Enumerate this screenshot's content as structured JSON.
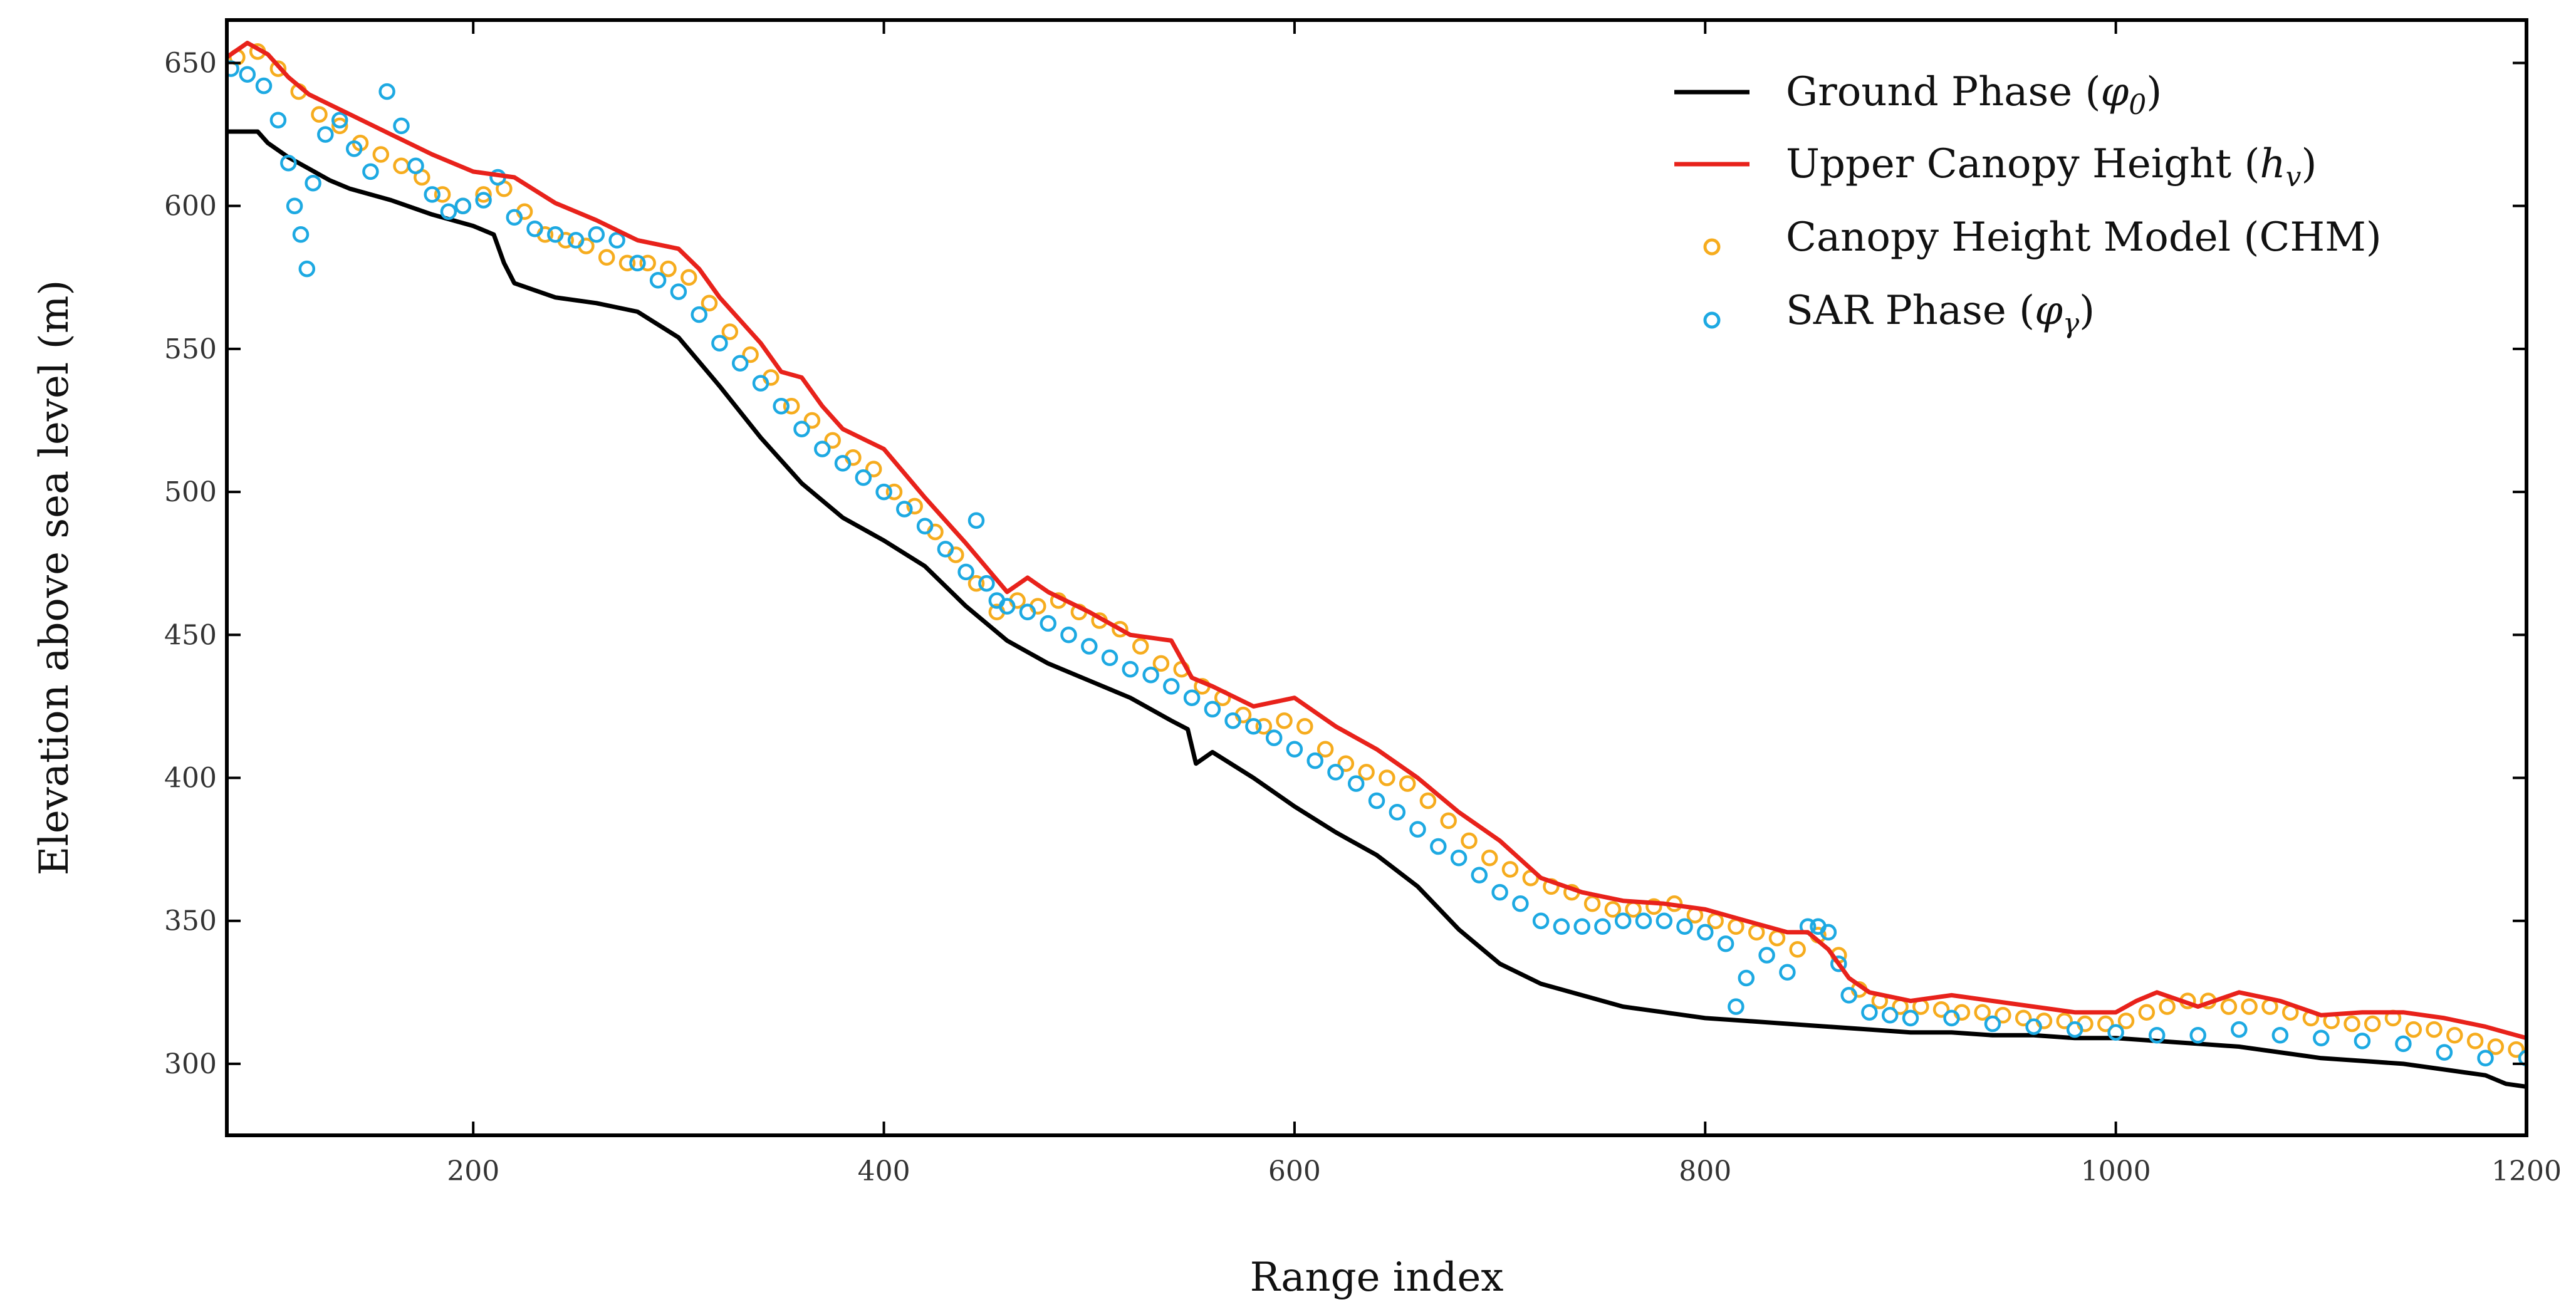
{
  "chart_data": {
    "type": "line",
    "title": "",
    "xlabel": "Range index",
    "ylabel": "Elevation above sea level (m)",
    "xlim": [
      80,
      1200
    ],
    "ylim": [
      275,
      665
    ],
    "xticks": [
      200,
      400,
      600,
      800,
      1000,
      1200
    ],
    "yticks": [
      300,
      350,
      400,
      450,
      500,
      550,
      600,
      650
    ],
    "grid": false,
    "legend_position": "top-right",
    "series": [
      {
        "name": "Ground Phase",
        "symbol": "φ",
        "subscript": "0",
        "style": "line",
        "color": "#000000",
        "x": [
          80,
          95,
          100,
          110,
          120,
          130,
          140,
          160,
          180,
          200,
          210,
          215,
          220,
          240,
          260,
          280,
          300,
          320,
          340,
          360,
          380,
          400,
          420,
          440,
          460,
          480,
          500,
          520,
          540,
          548,
          552,
          560,
          580,
          600,
          620,
          640,
          660,
          680,
          700,
          720,
          740,
          760,
          780,
          800,
          820,
          840,
          860,
          880,
          900,
          920,
          940,
          960,
          980,
          1000,
          1020,
          1040,
          1060,
          1080,
          1100,
          1120,
          1140,
          1160,
          1170,
          1180,
          1190,
          1200
        ],
        "y": [
          626,
          626,
          622,
          617,
          613,
          609,
          606,
          602,
          597,
          593,
          590,
          580,
          573,
          568,
          566,
          563,
          554,
          537,
          519,
          503,
          491,
          483,
          474,
          460,
          448,
          440,
          434,
          428,
          420,
          417,
          405,
          409,
          400,
          390,
          381,
          373,
          362,
          347,
          335,
          328,
          324,
          320,
          318,
          316,
          315,
          314,
          313,
          312,
          311,
          311,
          310,
          310,
          309,
          309,
          308,
          307,
          306,
          304,
          302,
          301,
          300,
          298,
          297,
          296,
          293,
          292
        ]
      },
      {
        "name": "Upper Canopy Height",
        "symbol": "h",
        "subscript": "v",
        "style": "line",
        "color": "#e8221b",
        "x": [
          80,
          90,
          100,
          110,
          120,
          140,
          160,
          180,
          200,
          220,
          240,
          260,
          280,
          300,
          310,
          320,
          330,
          340,
          350,
          360,
          370,
          380,
          400,
          420,
          440,
          460,
          470,
          480,
          500,
          520,
          540,
          550,
          560,
          580,
          600,
          620,
          640,
          660,
          680,
          700,
          720,
          740,
          760,
          780,
          800,
          820,
          840,
          850,
          860,
          870,
          880,
          900,
          920,
          940,
          960,
          980,
          1000,
          1010,
          1020,
          1040,
          1060,
          1080,
          1100,
          1120,
          1140,
          1160,
          1180,
          1190,
          1200
        ],
        "y": [
          652,
          657,
          653,
          645,
          639,
          632,
          625,
          618,
          612,
          610,
          601,
          595,
          588,
          585,
          578,
          568,
          560,
          552,
          542,
          540,
          530,
          522,
          515,
          498,
          482,
          465,
          470,
          465,
          458,
          450,
          448,
          435,
          432,
          425,
          428,
          418,
          410,
          400,
          388,
          378,
          365,
          360,
          357,
          356,
          354,
          350,
          346,
          346,
          340,
          330,
          325,
          322,
          324,
          322,
          320,
          318,
          318,
          322,
          325,
          320,
          325,
          322,
          317,
          318,
          318,
          316,
          313,
          311,
          309
        ]
      },
      {
        "name": "Canopy Height Model (CHM)",
        "style": "markers",
        "color": "#f6ac1e",
        "x": [
          85,
          95,
          105,
          115,
          125,
          135,
          145,
          155,
          165,
          175,
          185,
          195,
          205,
          215,
          225,
          235,
          245,
          255,
          265,
          275,
          285,
          295,
          305,
          315,
          325,
          335,
          345,
          355,
          365,
          375,
          385,
          395,
          405,
          415,
          425,
          435,
          445,
          455,
          465,
          475,
          485,
          495,
          505,
          515,
          525,
          535,
          545,
          555,
          565,
          575,
          585,
          595,
          605,
          615,
          625,
          635,
          645,
          655,
          665,
          675,
          685,
          695,
          705,
          715,
          725,
          735,
          745,
          755,
          765,
          775,
          785,
          795,
          805,
          815,
          825,
          835,
          845,
          855,
          865,
          875,
          885,
          895,
          905,
          915,
          925,
          935,
          945,
          955,
          965,
          975,
          985,
          995,
          1005,
          1015,
          1025,
          1035,
          1045,
          1055,
          1065,
          1075,
          1085,
          1095,
          1105,
          1115,
          1125,
          1135,
          1145,
          1155,
          1165,
          1175,
          1185,
          1195
        ],
        "y": [
          652,
          654,
          648,
          640,
          632,
          628,
          622,
          618,
          614,
          610,
          604,
          600,
          604,
          606,
          598,
          590,
          588,
          586,
          582,
          580,
          580,
          578,
          575,
          566,
          556,
          548,
          540,
          530,
          525,
          518,
          512,
          508,
          500,
          495,
          486,
          478,
          468,
          458,
          462,
          460,
          462,
          458,
          455,
          452,
          446,
          440,
          438,
          432,
          428,
          422,
          418,
          420,
          418,
          410,
          405,
          402,
          400,
          398,
          392,
          385,
          378,
          372,
          368,
          365,
          362,
          360,
          356,
          354,
          354,
          355,
          356,
          352,
          350,
          348,
          346,
          344,
          340,
          345,
          338,
          326,
          322,
          320,
          320,
          319,
          318,
          318,
          317,
          316,
          315,
          315,
          314,
          314,
          315,
          318,
          320,
          322,
          322,
          320,
          320,
          320,
          318,
          316,
          315,
          314,
          314,
          316,
          312,
          312,
          310,
          308,
          306,
          305
        ]
      },
      {
        "name": "SAR Phase",
        "symbol": "φ",
        "subscript": "γ",
        "style": "markers",
        "color": "#1da9e2",
        "x": [
          82,
          90,
          98,
          105,
          110,
          113,
          116,
          119,
          122,
          128,
          135,
          142,
          150,
          158,
          165,
          172,
          180,
          188,
          195,
          205,
          212,
          220,
          230,
          240,
          250,
          260,
          270,
          280,
          290,
          300,
          310,
          320,
          330,
          340,
          350,
          360,
          370,
          380,
          390,
          400,
          410,
          420,
          430,
          440,
          445,
          450,
          455,
          460,
          470,
          480,
          490,
          500,
          510,
          520,
          530,
          540,
          550,
          560,
          570,
          580,
          590,
          600,
          610,
          620,
          630,
          640,
          650,
          660,
          670,
          680,
          690,
          700,
          710,
          720,
          730,
          740,
          750,
          760,
          770,
          780,
          790,
          800,
          810,
          815,
          820,
          830,
          840,
          850,
          855,
          860,
          865,
          870,
          880,
          890,
          900,
          920,
          940,
          960,
          980,
          1000,
          1020,
          1040,
          1060,
          1080,
          1100,
          1120,
          1140,
          1160,
          1180,
          1200
        ],
        "y": [
          648,
          646,
          642,
          630,
          615,
          600,
          590,
          578,
          608,
          625,
          630,
          620,
          612,
          640,
          628,
          614,
          604,
          598,
          600,
          602,
          610,
          596,
          592,
          590,
          588,
          590,
          588,
          580,
          574,
          570,
          562,
          552,
          545,
          538,
          530,
          522,
          515,
          510,
          505,
          500,
          494,
          488,
          480,
          472,
          490,
          468,
          462,
          460,
          458,
          454,
          450,
          446,
          442,
          438,
          436,
          432,
          428,
          424,
          420,
          418,
          414,
          410,
          406,
          402,
          398,
          392,
          388,
          382,
          376,
          372,
          366,
          360,
          356,
          350,
          348,
          348,
          348,
          350,
          350,
          350,
          348,
          346,
          342,
          320,
          330,
          338,
          332,
          348,
          348,
          346,
          335,
          324,
          318,
          317,
          316,
          316,
          314,
          313,
          312,
          311,
          310,
          310,
          312,
          310,
          309,
          308,
          307,
          304,
          302,
          302
        ]
      }
    ]
  }
}
